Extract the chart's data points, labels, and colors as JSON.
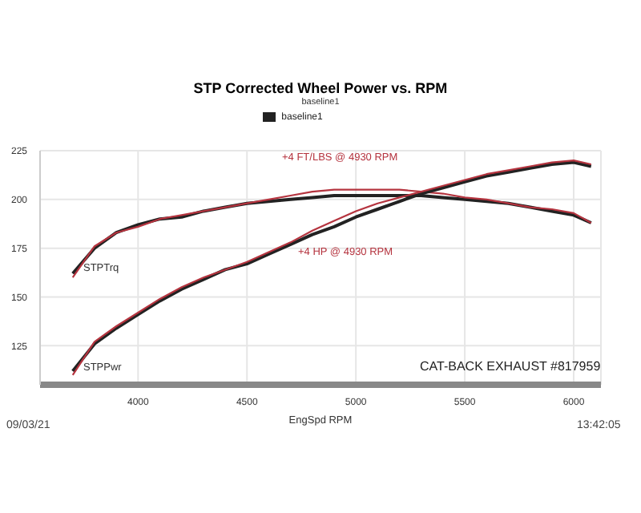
{
  "chart_data": {
    "type": "line",
    "title": "STP Corrected Wheel Power vs. RPM",
    "subtitle": "baseline1",
    "xlabel": "EngSpd  RPM",
    "x": [
      3700,
      3800,
      3900,
      4000,
      4100,
      4200,
      4300,
      4400,
      4500,
      4600,
      4700,
      4800,
      4900,
      5000,
      5100,
      5200,
      5300,
      5400,
      5500,
      5600,
      5700,
      5800,
      5900,
      6000,
      6080
    ],
    "series": [
      {
        "name": "baseline1",
        "color": "#222222",
        "values": [
          162,
          175,
          183,
          187,
          190,
          191,
          194,
          196,
          198,
          199,
          200,
          201,
          202,
          202,
          202,
          202,
          202,
          201,
          200,
          199,
          198,
          196,
          194,
          192,
          188
        ]
      },
      {
        "color": "#b5343f",
        "values": [
          160,
          176,
          183,
          186,
          190,
          192,
          194,
          196,
          198,
          200,
          202,
          204,
          205,
          205,
          205,
          205,
          204,
          203,
          201,
          200,
          198,
          196,
          195,
          193,
          188
        ]
      },
      {
        "color": "#222222",
        "values": [
          112,
          126,
          134,
          141,
          148,
          154,
          159,
          164,
          167,
          172,
          177,
          182,
          186,
          191,
          195,
          199,
          203,
          206,
          209,
          212,
          214,
          216,
          218,
          219,
          217
        ]
      },
      {
        "color": "#b5343f",
        "values": [
          110,
          127,
          135,
          142,
          149,
          155,
          160,
          164,
          168,
          173,
          178,
          184,
          189,
          194,
          198,
          201,
          204,
          207,
          210,
          213,
          215,
          217,
          219,
          220,
          218
        ]
      }
    ],
    "xlim": [
      3550,
      6125
    ],
    "xticks": [
      4000,
      4500,
      5000,
      5500,
      6000
    ],
    "ylim": [
      105,
      225
    ],
    "yticks": [
      125,
      150,
      175,
      200,
      225
    ],
    "grid": true,
    "legend": "top",
    "line_style": "solid",
    "marker": "none",
    "annotations": [
      "STPTrq",
      "STPPwr",
      "+4 FT/LBS @ 4930 RPM",
      "+4 HP @ 4930 RPM",
      "CAT-BACK EXHAUST #817959",
      "09/03/21",
      "13:42:05"
    ]
  }
}
